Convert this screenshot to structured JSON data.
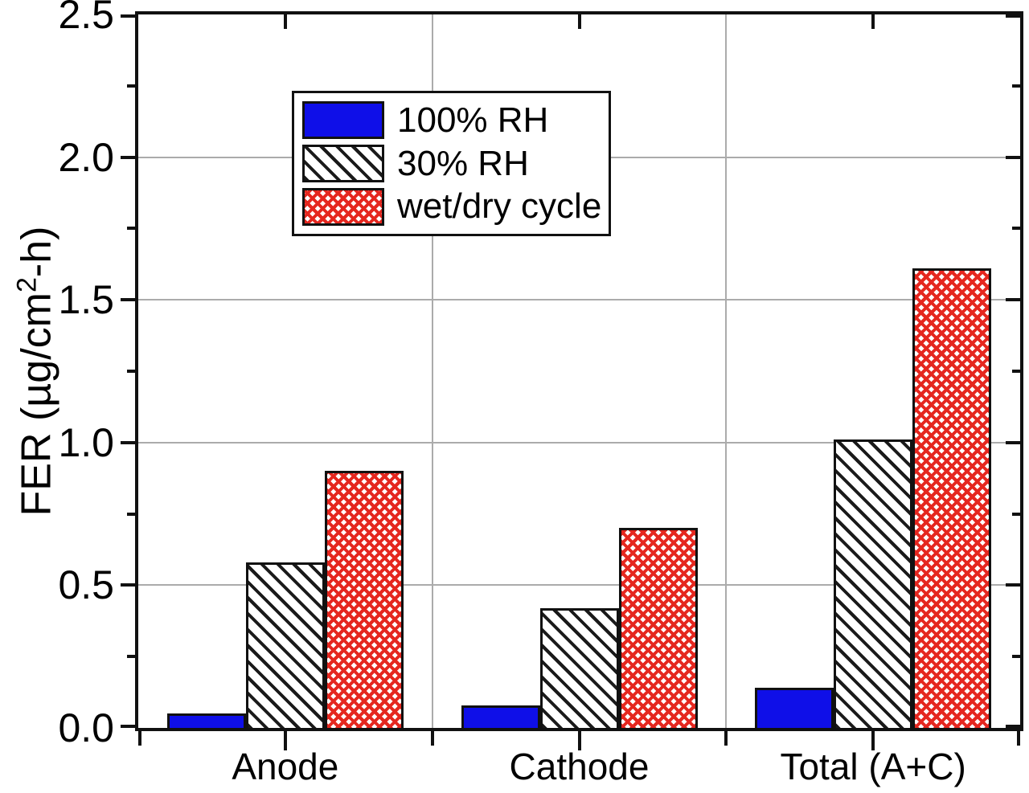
{
  "figure": {
    "background": "#ffffff"
  },
  "chart_data": {
    "type": "bar",
    "title": "",
    "categories": [
      "Anode",
      "Cathode",
      "Total (A+C)"
    ],
    "series": [
      {
        "name": "100% RH",
        "pattern": "solid",
        "color": "#0f0fe8",
        "values": [
          0.05,
          0.08,
          0.14
        ]
      },
      {
        "name": "30% RH",
        "pattern": "diagonal-hatch",
        "color": "#1a1a1a",
        "values": [
          0.58,
          0.42,
          1.01
        ]
      },
      {
        "name": "wet/dry cycle",
        "pattern": "crosshatch",
        "color": "#e5271f",
        "values": [
          0.9,
          0.7,
          1.61
        ]
      }
    ],
    "ylabel": {
      "prefix": "FER (µg/cm",
      "superscript": "2",
      "suffix": "-h)"
    },
    "xlabel": "",
    "ylim": [
      0,
      2.5
    ],
    "ytick_labels": [
      "0.0",
      "0.5",
      "1.0",
      "1.5",
      "2.0",
      "2.5"
    ],
    "ytick_step": 0.5,
    "ytick_minor_step": 0.25,
    "grid": "horizontal major gridlines + vertical group separators",
    "legend_position": "upper left inside plot",
    "axis_color": "#111111",
    "grid_color": "#ababab"
  }
}
